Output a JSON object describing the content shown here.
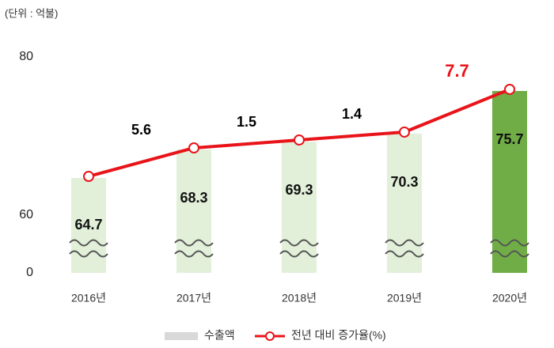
{
  "chart_data": {
    "type": "bar-line",
    "unit_label": "(단위 : 억불)",
    "categories": [
      "2016년",
      "2017년",
      "2018년",
      "2019년",
      "2020년"
    ],
    "series": [
      {
        "name": "수출액",
        "type": "bar",
        "legend_color": "#d9d9d9",
        "colors": [
          "#e2efd9",
          "#e2efd9",
          "#e2efd9",
          "#e2efd9",
          "#70ad47"
        ],
        "values": [
          64.7,
          68.3,
          69.3,
          70.3,
          75.7
        ]
      },
      {
        "name": "전년 대비 증가율(%)",
        "type": "line",
        "color": "#e8141a",
        "label_colors": [
          null,
          "#000000",
          "#000000",
          "#000000",
          "#e8141a"
        ],
        "values": [
          null,
          5.6,
          1.5,
          1.4,
          7.7
        ]
      }
    ],
    "ylim": [
      0,
      80
    ],
    "yticks": [
      0,
      60,
      80
    ],
    "axis_break": true,
    "grid": false
  }
}
